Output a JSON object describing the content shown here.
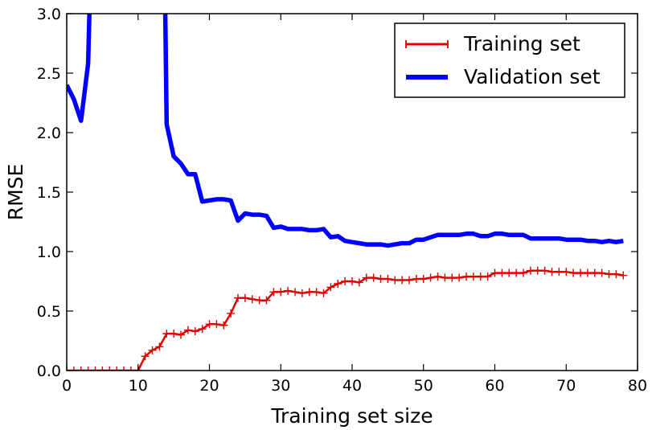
{
  "chart_data": {
    "type": "line",
    "xlabel": "Training set size",
    "ylabel": "RMSE",
    "xlim": [
      0,
      80
    ],
    "ylim": [
      0,
      3.0
    ],
    "xticks": [
      "0",
      "10",
      "20",
      "30",
      "40",
      "50",
      "60",
      "70",
      "80"
    ],
    "yticks": [
      "0.0",
      "0.5",
      "1.0",
      "1.5",
      "2.0",
      "2.5",
      "3.0"
    ],
    "grid": false,
    "legend_position": "top-right",
    "series": [
      {
        "name": "Training set",
        "color": "#e00000",
        "marker": "+",
        "x": [
          0,
          1,
          2,
          3,
          4,
          5,
          6,
          7,
          8,
          9,
          10,
          11,
          12,
          13,
          14,
          15,
          16,
          17,
          18,
          19,
          20,
          21,
          22,
          23,
          24,
          25,
          26,
          27,
          28,
          29,
          30,
          31,
          32,
          33,
          34,
          35,
          36,
          37,
          38,
          39,
          40,
          41,
          42,
          43,
          44,
          45,
          46,
          47,
          48,
          49,
          50,
          51,
          52,
          53,
          54,
          55,
          56,
          57,
          58,
          59,
          60,
          61,
          62,
          63,
          64,
          65,
          66,
          67,
          68,
          69,
          70,
          71,
          72,
          73,
          74,
          75,
          76,
          77,
          78
        ],
        "y": [
          0,
          0,
          0,
          0,
          0,
          0,
          0,
          0,
          0,
          0,
          0,
          0.12,
          0.17,
          0.2,
          0.31,
          0.31,
          0.3,
          0.34,
          0.33,
          0.35,
          0.39,
          0.39,
          0.38,
          0.48,
          0.61,
          0.61,
          0.6,
          0.59,
          0.59,
          0.66,
          0.66,
          0.67,
          0.66,
          0.65,
          0.66,
          0.66,
          0.65,
          0.7,
          0.73,
          0.75,
          0.75,
          0.74,
          0.78,
          0.78,
          0.77,
          0.77,
          0.76,
          0.76,
          0.76,
          0.77,
          0.77,
          0.78,
          0.79,
          0.78,
          0.78,
          0.78,
          0.79,
          0.79,
          0.79,
          0.79,
          0.82,
          0.82,
          0.82,
          0.82,
          0.82,
          0.84,
          0.84,
          0.84,
          0.83,
          0.83,
          0.83,
          0.82,
          0.82,
          0.82,
          0.82,
          0.82,
          0.81,
          0.81,
          0.8
        ]
      },
      {
        "name": "Validation set",
        "color": "#0000ff",
        "x": [
          0,
          1,
          2,
          3,
          3.2,
          13.8,
          14,
          15,
          16,
          17,
          18,
          19,
          20,
          21,
          22,
          23,
          24,
          25,
          26,
          27,
          28,
          29,
          30,
          31,
          32,
          33,
          34,
          35,
          36,
          37,
          38,
          39,
          40,
          41,
          42,
          43,
          44,
          45,
          46,
          47,
          48,
          49,
          50,
          51,
          52,
          53,
          54,
          55,
          56,
          57,
          58,
          59,
          60,
          61,
          62,
          63,
          64,
          65,
          66,
          67,
          68,
          69,
          70,
          71,
          72,
          73,
          74,
          75,
          76,
          77,
          78
        ],
        "y": [
          2.4,
          2.28,
          2.1,
          2.58,
          3.05,
          3.05,
          2.07,
          1.8,
          1.74,
          1.65,
          1.65,
          1.42,
          1.43,
          1.44,
          1.44,
          1.43,
          1.26,
          1.32,
          1.31,
          1.31,
          1.3,
          1.2,
          1.21,
          1.19,
          1.19,
          1.19,
          1.18,
          1.18,
          1.19,
          1.12,
          1.13,
          1.09,
          1.08,
          1.07,
          1.06,
          1.06,
          1.06,
          1.05,
          1.06,
          1.07,
          1.07,
          1.1,
          1.1,
          1.12,
          1.14,
          1.14,
          1.14,
          1.14,
          1.15,
          1.15,
          1.13,
          1.13,
          1.15,
          1.15,
          1.14,
          1.14,
          1.14,
          1.11,
          1.11,
          1.11,
          1.11,
          1.11,
          1.1,
          1.1,
          1.1,
          1.09,
          1.09,
          1.08,
          1.09,
          1.08,
          1.09
        ]
      }
    ]
  }
}
